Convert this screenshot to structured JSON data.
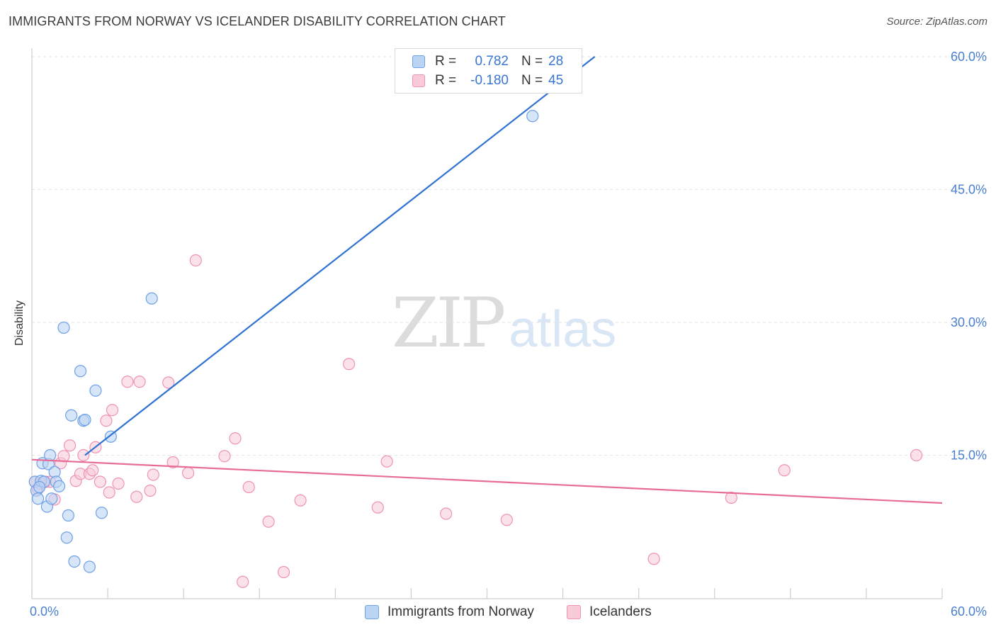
{
  "header": {
    "title": "IMMIGRANTS FROM NORWAY VS ICELANDER DISABILITY CORRELATION CHART",
    "source": "Source: ZipAtlas.com"
  },
  "watermark": {
    "zip": "ZIP",
    "atlas": "atlas"
  },
  "legend": {
    "rows": [
      {
        "r_label": "R =",
        "r_value": "0.782",
        "n_label": "N =",
        "n_value": "28",
        "color": "#6fa1e6"
      },
      {
        "r_label": "R =",
        "r_value": "-0.180",
        "n_label": "N =",
        "n_value": "45",
        "color": "#ef93b1"
      }
    ]
  },
  "bottom_legend": {
    "norway": "Immigrants from Norway",
    "icelanders": "Icelanders"
  },
  "colors": {
    "norway_fill": "#bcd4f4",
    "norway_stroke": "#6fa1e6",
    "norway_line": "#2f72d4",
    "iceland_fill": "#f8cbd9",
    "iceland_stroke": "#ef93b1",
    "iceland_line": "#e76c96",
    "tick_text": "#4a7fd0",
    "grid": "#e2e2e2"
  },
  "chart_data": {
    "type": "scatter",
    "title": "IMMIGRANTS FROM NORWAY VS ICELANDER DISABILITY CORRELATION CHART",
    "xlabel": "",
    "ylabel": "Disability",
    "xlim": [
      0,
      60
    ],
    "ylim": [
      0,
      60
    ],
    "x_tick_labels": [
      {
        "value": 0,
        "label": "0.0%"
      },
      {
        "value": 60,
        "label": "60.0%"
      }
    ],
    "y_tick_labels": [
      {
        "value": 15,
        "label": "15.0%"
      },
      {
        "value": 30,
        "label": "30.0%"
      },
      {
        "value": 45,
        "label": "45.0%"
      },
      {
        "value": 60,
        "label": "60.0%"
      }
    ],
    "series": [
      {
        "name": "Immigrants from Norway",
        "R": 0.782,
        "N": 28,
        "points": [
          [
            0.2,
            12.0
          ],
          [
            0.3,
            11.0
          ],
          [
            0.4,
            10.1
          ],
          [
            0.6,
            12.1
          ],
          [
            0.7,
            14.1
          ],
          [
            0.8,
            12.0
          ],
          [
            1.0,
            9.2
          ],
          [
            1.1,
            14.0
          ],
          [
            1.2,
            15.0
          ],
          [
            1.3,
            10.1
          ],
          [
            1.5,
            13.1
          ],
          [
            1.6,
            12.0
          ],
          [
            1.8,
            11.5
          ],
          [
            2.1,
            29.4
          ],
          [
            2.3,
            5.7
          ],
          [
            2.4,
            8.2
          ],
          [
            2.6,
            19.5
          ],
          [
            2.8,
            3.0
          ],
          [
            3.2,
            24.5
          ],
          [
            3.4,
            18.9
          ],
          [
            3.5,
            19.0
          ],
          [
            3.8,
            2.4
          ],
          [
            4.2,
            22.3
          ],
          [
            4.6,
            8.5
          ],
          [
            5.2,
            17.1
          ],
          [
            7.9,
            32.7
          ],
          [
            33.0,
            53.3
          ],
          [
            0.5,
            11.4
          ]
        ],
        "trend": {
          "x": [
            3.5,
            37.1
          ],
          "y": [
            15.0,
            60.0
          ]
        }
      },
      {
        "name": "Icelanders",
        "R": -0.18,
        "N": 45,
        "points": [
          [
            0.2,
            12.0
          ],
          [
            0.4,
            11.2
          ],
          [
            0.6,
            11.8
          ],
          [
            0.9,
            12.0
          ],
          [
            1.2,
            12.0
          ],
          [
            1.5,
            10.0
          ],
          [
            1.9,
            14.1
          ],
          [
            2.1,
            14.9
          ],
          [
            2.5,
            16.1
          ],
          [
            2.9,
            12.1
          ],
          [
            3.2,
            12.9
          ],
          [
            3.4,
            15.0
          ],
          [
            3.8,
            12.9
          ],
          [
            4.0,
            13.3
          ],
          [
            4.2,
            15.9
          ],
          [
            4.5,
            12.0
          ],
          [
            4.9,
            18.9
          ],
          [
            5.1,
            10.8
          ],
          [
            5.3,
            20.1
          ],
          [
            5.7,
            11.8
          ],
          [
            6.3,
            23.3
          ],
          [
            6.9,
            10.3
          ],
          [
            7.1,
            23.3
          ],
          [
            7.8,
            11.0
          ],
          [
            8.0,
            12.8
          ],
          [
            9.0,
            23.2
          ],
          [
            9.3,
            14.2
          ],
          [
            10.3,
            13.0
          ],
          [
            10.8,
            37.0
          ],
          [
            12.7,
            14.9
          ],
          [
            13.4,
            16.9
          ],
          [
            13.9,
            0.7
          ],
          [
            14.3,
            11.4
          ],
          [
            15.6,
            7.5
          ],
          [
            16.6,
            1.8
          ],
          [
            17.7,
            9.9
          ],
          [
            20.9,
            25.3
          ],
          [
            22.8,
            9.1
          ],
          [
            23.4,
            14.3
          ],
          [
            27.3,
            8.4
          ],
          [
            31.3,
            7.7
          ],
          [
            41.0,
            3.3
          ],
          [
            46.1,
            10.2
          ],
          [
            49.6,
            13.3
          ],
          [
            58.3,
            15.0
          ]
        ],
        "trend": {
          "x": [
            0,
            60
          ],
          "y": [
            14.5,
            9.6
          ]
        }
      }
    ],
    "legend_position": "top-center",
    "grid": true
  }
}
